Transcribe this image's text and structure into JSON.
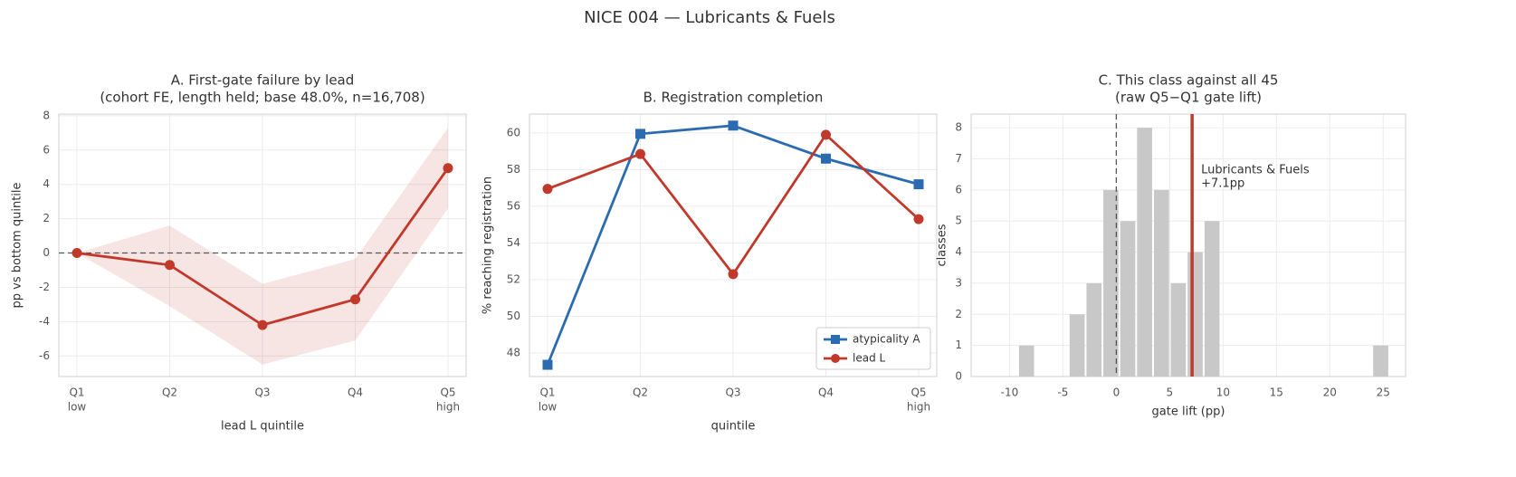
{
  "title": "NICE 004 — Lubricants & Fuels",
  "chart_data": [
    {
      "type": "line",
      "title": [
        "A. First-gate failure by lead",
        "(cohort FE, length held; base 48.0%, n=16,708)"
      ],
      "xlabel": "lead L quintile",
      "ylabel": "pp vs bottom quintile",
      "categories": [
        "Q1",
        "Q2",
        "Q3",
        "Q4",
        "Q5"
      ],
      "category_notes": [
        "low",
        null,
        null,
        null,
        "high"
      ],
      "series": [
        {
          "name": "lead L",
          "color": "#c0392b",
          "marker": "o",
          "values": [
            0,
            -0.7,
            -4.2,
            -2.7,
            4.95
          ]
        }
      ],
      "band_lower": [
        0,
        -3.1,
        -6.5,
        -5.1,
        2.6
      ],
      "band_upper": [
        0,
        1.6,
        -1.8,
        -0.35,
        7.3
      ],
      "band_color": "#c0392b",
      "hline": 0,
      "ylim": [
        -7.2,
        8.1
      ],
      "yticks": [
        -6,
        -4,
        -2,
        0,
        2,
        4,
        6,
        8
      ],
      "grid": true
    },
    {
      "type": "line",
      "title": [
        "B. Registration completion"
      ],
      "xlabel": "quintile",
      "ylabel": "% reaching registration",
      "categories": [
        "Q1",
        "Q2",
        "Q3",
        "Q4",
        "Q5"
      ],
      "category_notes": [
        "low",
        null,
        null,
        null,
        "high"
      ],
      "series": [
        {
          "name": "atypicality A",
          "color": "#2b6cb0",
          "marker": "s",
          "values": [
            47.36,
            59.95,
            60.4,
            58.6,
            57.2
          ]
        },
        {
          "name": "lead L",
          "color": "#c0392b",
          "marker": "o",
          "values": [
            56.95,
            58.85,
            52.3,
            59.9,
            55.3
          ]
        }
      ],
      "legend": "lower right",
      "ylim": [
        46.72,
        61.03
      ],
      "yticks": [
        48,
        50,
        52,
        54,
        56,
        58,
        60
      ],
      "grid": true
    },
    {
      "type": "histogram",
      "title": [
        "C. This class against all 45",
        "(raw Q5−Q1 gate lift)"
      ],
      "xlabel": "gate lift (pp)",
      "ylabel": "classes",
      "bins": [
        -9.2,
        -7.62,
        -6.04,
        -4.46,
        -2.88,
        -1.3,
        0.28,
        1.86,
        3.44,
        5.02,
        6.6,
        8.18,
        9.76,
        11.34,
        12.92,
        14.5,
        16.08,
        17.66,
        19.24,
        20.82,
        22.4,
        23.98,
        25.56
      ],
      "values": [
        1,
        0,
        0,
        2,
        3,
        6,
        5,
        8,
        6,
        3,
        4,
        5,
        0,
        0,
        0,
        0,
        0,
        0,
        0,
        0,
        0,
        1
      ],
      "color": "#c8c8c8",
      "reference_x": 0,
      "vline": {
        "value": 7.1,
        "color": "#c0392b",
        "label": [
          "Lubricants & Fuels",
          "+7.1pp"
        ]
      },
      "xlim": [
        -13.6,
        27.1
      ],
      "ylim": [
        0,
        8.44
      ],
      "xticks": [
        -10,
        -5,
        0,
        5,
        10,
        15,
        20,
        25
      ],
      "yticks": [
        0,
        1,
        2,
        3,
        4,
        5,
        6,
        7,
        8
      ],
      "grid": true
    }
  ]
}
